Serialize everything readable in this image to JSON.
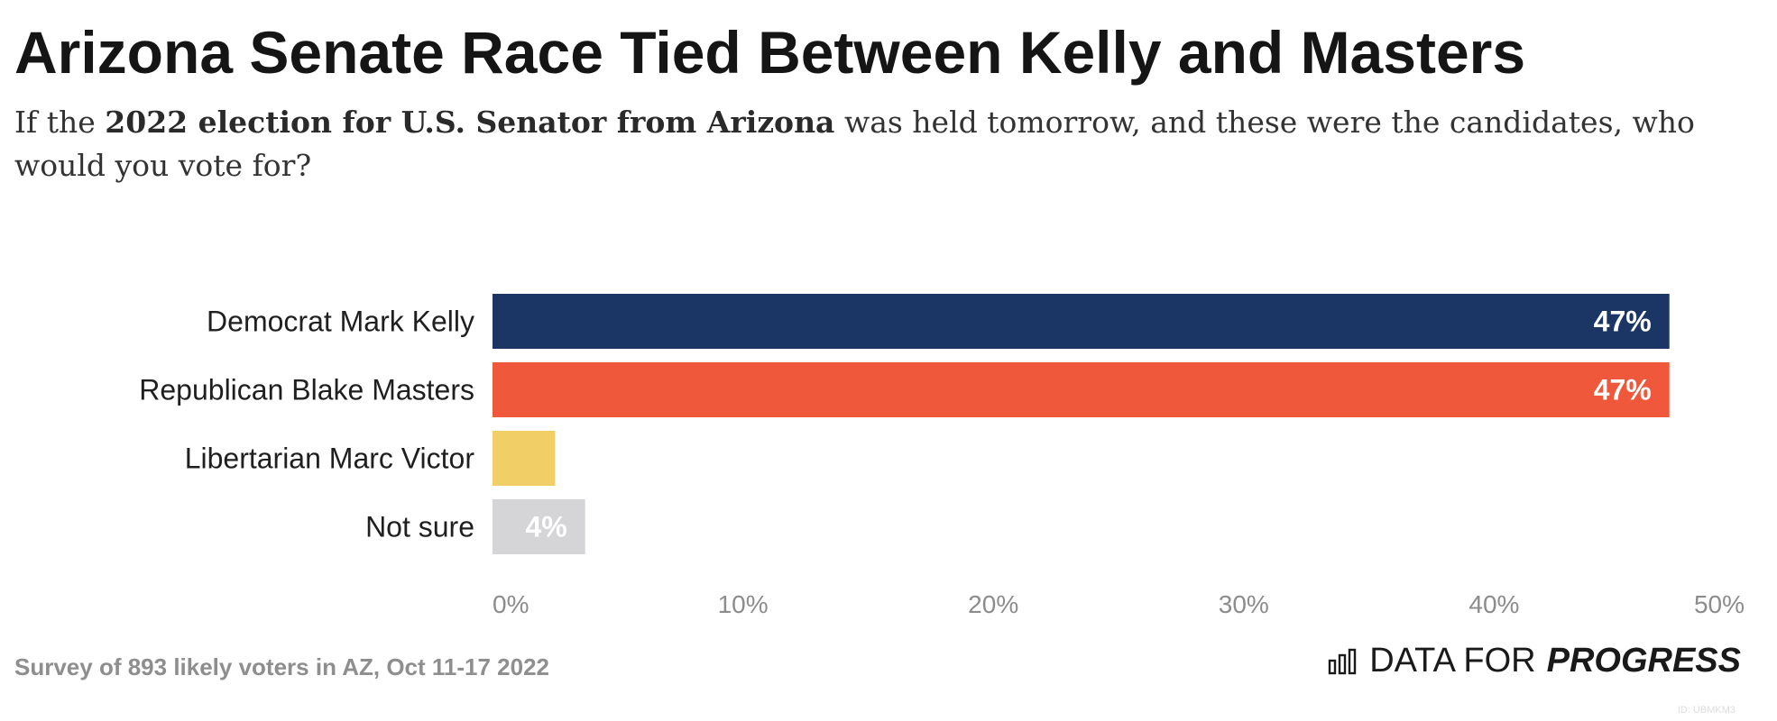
{
  "header": {
    "title": "Arizona Senate Race Tied Between Kelly and Masters",
    "subtitle_pre": "If the ",
    "subtitle_bold": "2022 election for U.S. Senator from Arizona",
    "subtitle_post": " was held tomorrow, and these were the candidates, who would you vote for?"
  },
  "chart_data": {
    "type": "bar",
    "orientation": "horizontal",
    "categories": [
      "Democrat Mark Kelly",
      "Republican Blake Masters",
      "Libertarian Marc Victor",
      "Not sure"
    ],
    "values": [
      47,
      47,
      2.5,
      3.7
    ],
    "value_labels": [
      "47%",
      "47%",
      "",
      "4%"
    ],
    "colors": [
      "#1b3664",
      "#f0583b",
      "#f1cf66",
      "#d5d5d7"
    ],
    "xlim": [
      0,
      50
    ],
    "ticks": [
      0,
      10,
      20,
      30,
      40,
      50
    ],
    "tick_labels": [
      "0%",
      "10%",
      "20%",
      "30%",
      "40%",
      "50%"
    ],
    "grid": false,
    "legend": "none"
  },
  "footer": {
    "source": "Survey of 893 likely voters in AZ, Oct 11-17 2022",
    "logo_light": "DATA FOR",
    "logo_bold": "PROGRESS",
    "logo_icon": "bar-chart-icon",
    "id_text": "ID: UBMKM3"
  }
}
